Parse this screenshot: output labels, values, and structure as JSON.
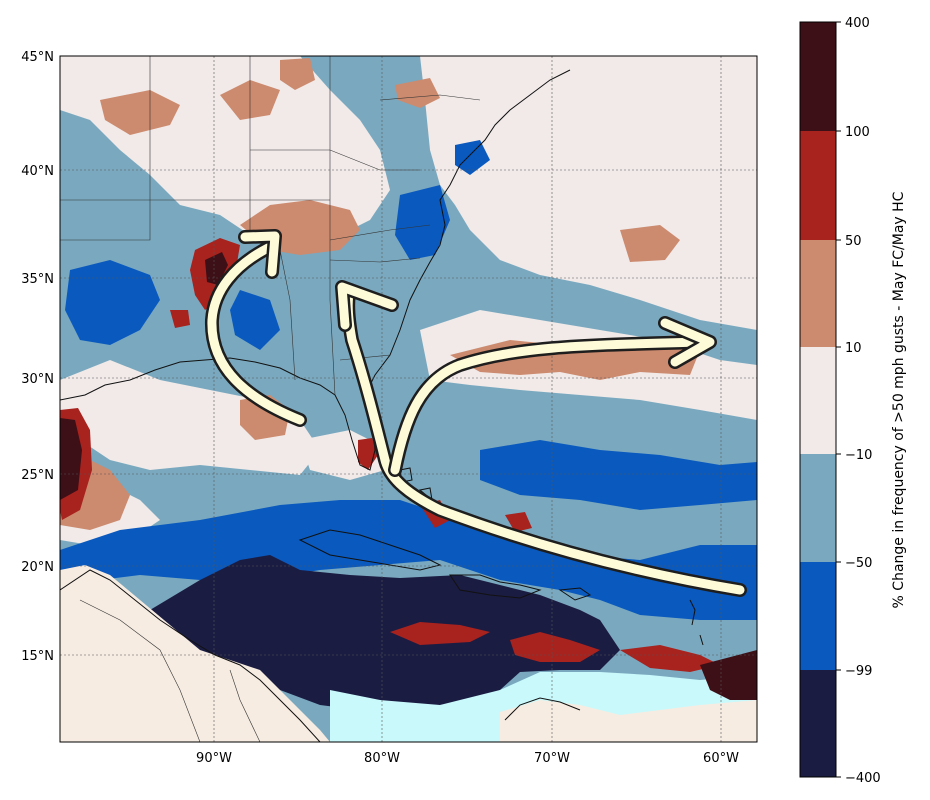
{
  "map": {
    "lat_labels": [
      "45°N",
      "40°N",
      "35°N",
      "30°N",
      "25°N",
      "20°N",
      "15°N"
    ],
    "lon_labels": [
      "90°W",
      "80°W",
      "70°W",
      "60°W"
    ],
    "colors": {
      "ocean_base": "#7aa9bf",
      "land_base": "#f1ecea",
      "light_cyan": "#c9f9fb",
      "land_beige": "#f7ece2",
      "gridline": "#555555",
      "arrow_fill": "#fefbd8",
      "arrow_stroke": "#1e1e1e"
    }
  },
  "colorbar": {
    "title": "% Change in frequency of >50 mph gusts - May FC/May HC",
    "tick_labels": [
      "400",
      "100",
      "50",
      "10",
      "−10",
      "−50",
      "−99",
      "−400"
    ],
    "bands": [
      {
        "range": "100 to 400",
        "color": "#3d0f16"
      },
      {
        "range": "50 to 100",
        "color": "#a8221e"
      },
      {
        "range": "10 to 50",
        "color": "#cc8a6e"
      },
      {
        "range": "-10 to 10",
        "color": "#f1eae9"
      },
      {
        "range": "-50 to -10",
        "color": "#7aa9bf"
      },
      {
        "range": "-99 to -50",
        "color": "#0a59be"
      },
      {
        "range": "-400 to -99",
        "color": "#1b1c42"
      }
    ]
  }
}
